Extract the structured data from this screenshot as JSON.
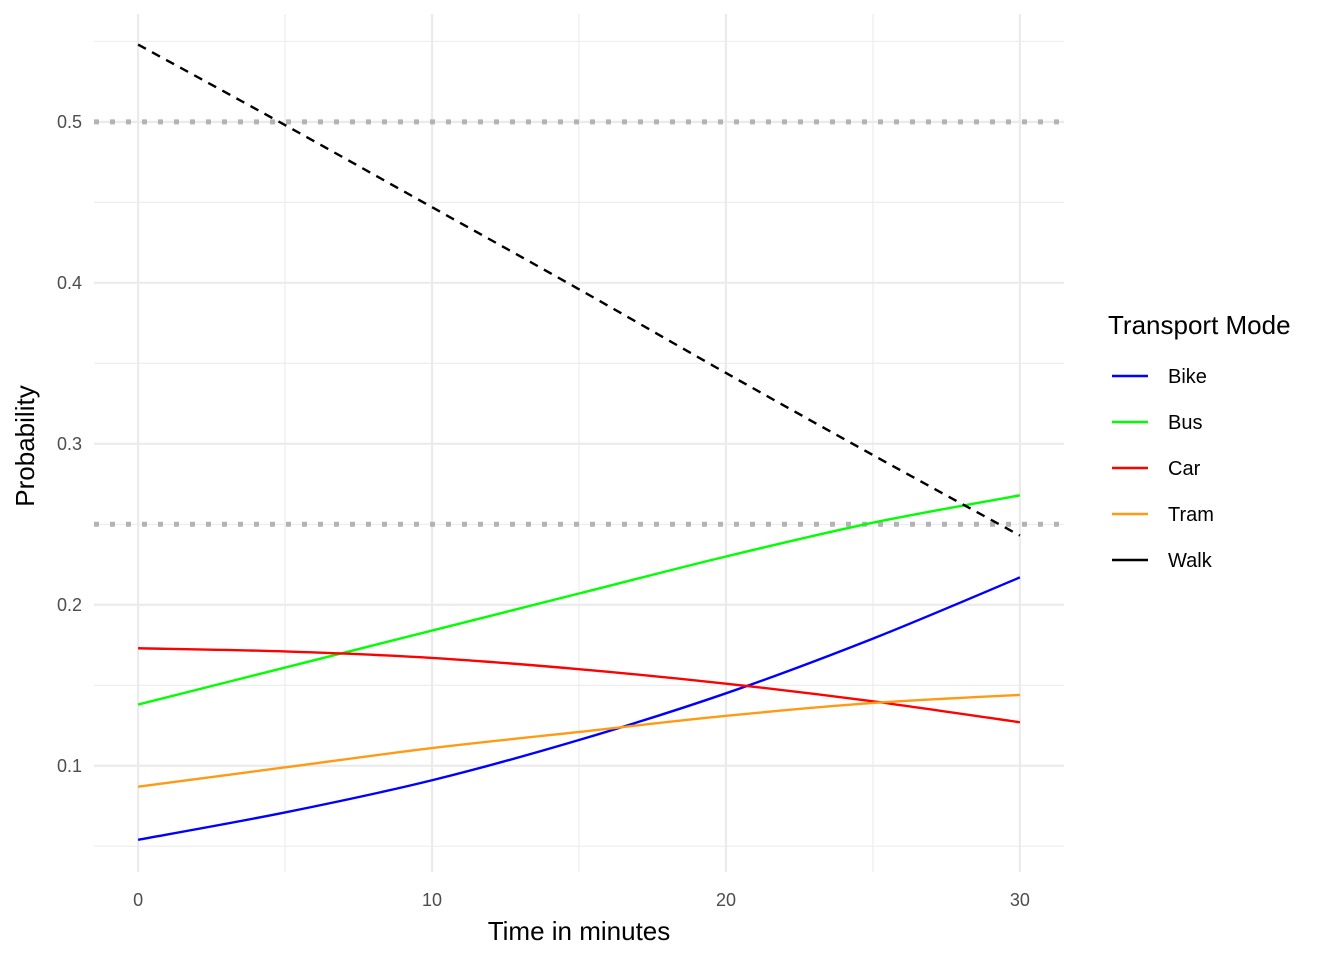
{
  "chart_data": {
    "type": "line",
    "title": "",
    "xlabel": "Time in minutes",
    "ylabel": "Probability",
    "xlim": [
      -1.5,
      31.5
    ],
    "ylim": [
      0.034,
      0.567
    ],
    "x_ticks": [
      0,
      10,
      20,
      30
    ],
    "x_tick_labels": [
      "0",
      "10",
      "20",
      "30"
    ],
    "y_ticks": [
      0.1,
      0.2,
      0.3,
      0.4,
      0.5
    ],
    "y_tick_labels": [
      "0.1",
      "0.2",
      "0.3",
      "0.4",
      "0.5"
    ],
    "grid": true,
    "legend_title": "Transport Mode",
    "legend_position": "right",
    "reference_lines": [
      {
        "y": 0.5,
        "style": "dotted",
        "color": "#b3b3b3"
      },
      {
        "y": 0.25,
        "style": "dotted",
        "color": "#b3b3b3"
      }
    ],
    "series": [
      {
        "name": "Bike",
        "color": "#0000ff",
        "dash": "solid",
        "x": [
          0,
          5,
          10,
          15,
          20,
          25,
          30
        ],
        "values": [
          0.054,
          0.071,
          0.091,
          0.116,
          0.145,
          0.179,
          0.217
        ]
      },
      {
        "name": "Bus",
        "color": "#00ff00",
        "dash": "solid",
        "x": [
          0,
          5,
          10,
          15,
          20,
          25,
          30
        ],
        "values": [
          0.138,
          0.161,
          0.184,
          0.207,
          0.23,
          0.251,
          0.268
        ]
      },
      {
        "name": "Car",
        "color": "#ff0000",
        "dash": "solid",
        "x": [
          0,
          5,
          10,
          15,
          20,
          25,
          30
        ],
        "values": [
          0.173,
          0.171,
          0.167,
          0.16,
          0.151,
          0.14,
          0.127
        ]
      },
      {
        "name": "Tram",
        "color": "#ff9a14",
        "dash": "solid",
        "x": [
          0,
          5,
          10,
          15,
          20,
          25,
          30
        ],
        "values": [
          0.087,
          0.099,
          0.111,
          0.121,
          0.131,
          0.139,
          0.144
        ]
      },
      {
        "name": "Walk",
        "color": "#000000",
        "dash": "dashed",
        "x": [
          0,
          5,
          10,
          15,
          20,
          25,
          30
        ],
        "values": [
          0.548,
          0.498,
          0.447,
          0.396,
          0.344,
          0.293,
          0.243
        ]
      }
    ]
  }
}
